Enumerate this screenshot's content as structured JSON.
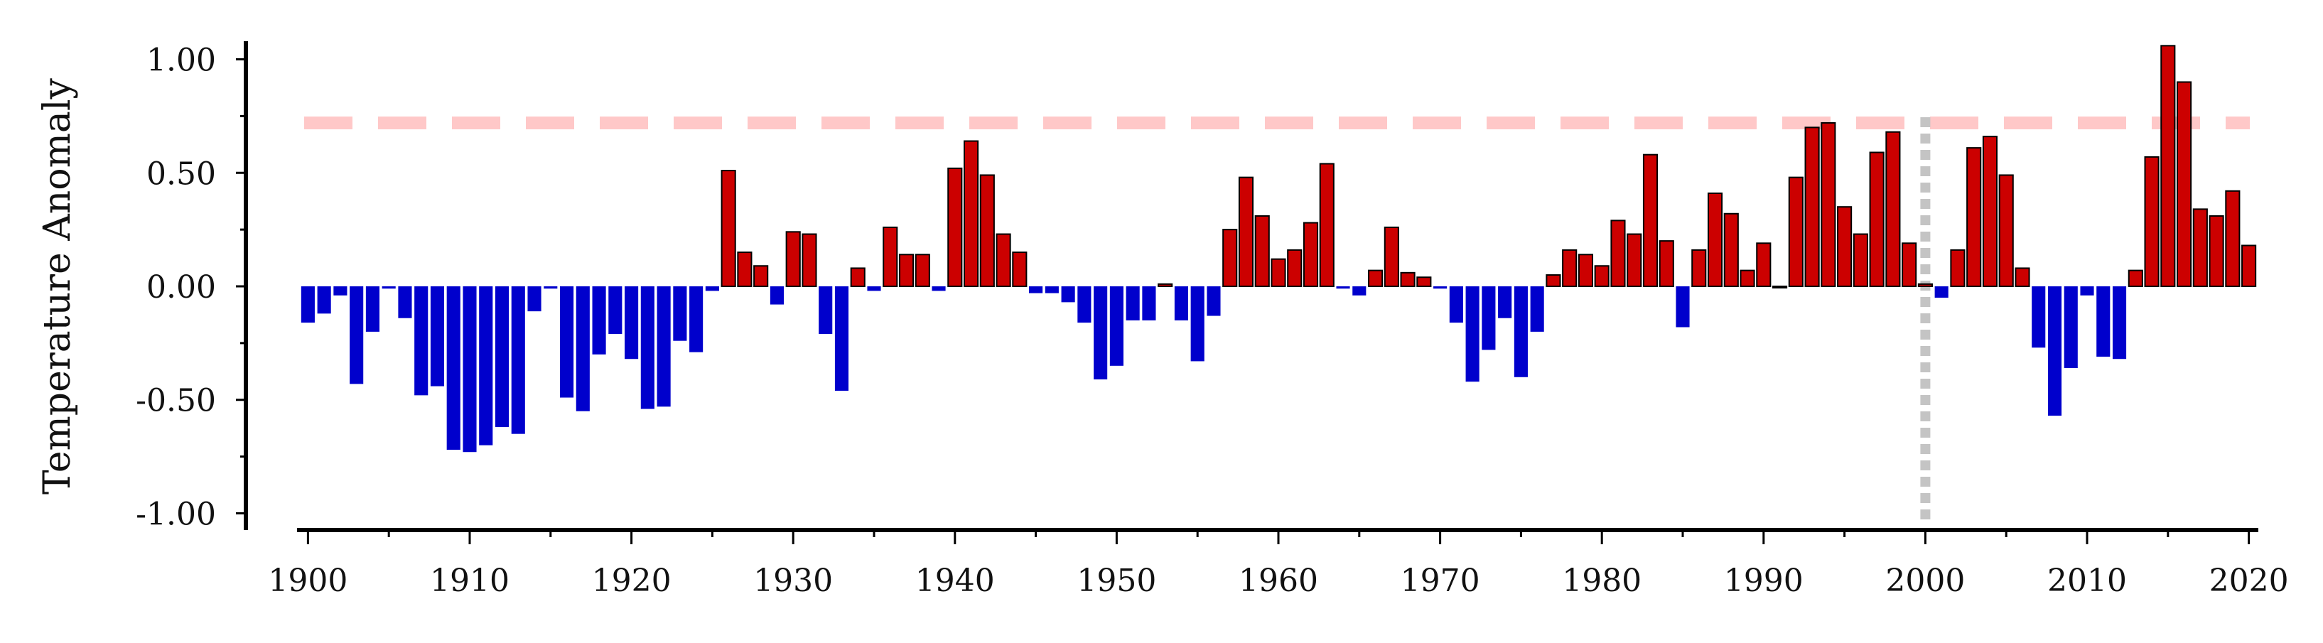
{
  "chart_data": {
    "type": "bar",
    "title": "",
    "xlabel": "",
    "ylabel": "Temperature Anomaly",
    "xlim": [
      1899.5,
      2020.5
    ],
    "ylim": [
      -1.18,
      1.18
    ],
    "x_ticks": [
      1900,
      1910,
      1920,
      1930,
      1940,
      1950,
      1960,
      1970,
      1980,
      1990,
      2000,
      2010,
      2020
    ],
    "x_tick_labels": [
      "1900",
      "1910",
      "1920",
      "1930",
      "1940",
      "1950",
      "1960",
      "1970",
      "1980",
      "1990",
      "2000",
      "2010",
      "2020"
    ],
    "y_ticks": [
      1.0,
      0.5,
      0.0,
      -0.5,
      -1.0
    ],
    "y_tick_labels": [
      "1.00",
      "0.50",
      "0.00",
      "-0.50",
      "-1.00"
    ],
    "y_minor_ticks": [
      0.75,
      0.25,
      -0.25,
      -0.75
    ],
    "grid": false,
    "legend": "none",
    "colors": {
      "positive": "#cc0000",
      "negative": "#0000cc",
      "outline": "#000000",
      "reference_line": "#ffc8c8",
      "marker_line": "#c4c4c4"
    },
    "reference_line": {
      "y": 0.72,
      "style": "dashed"
    },
    "vertical_marker": {
      "x": 2000,
      "style": "dotted"
    },
    "years": [
      1900,
      1901,
      1902,
      1903,
      1904,
      1905,
      1906,
      1907,
      1908,
      1909,
      1910,
      1911,
      1912,
      1913,
      1914,
      1915,
      1916,
      1917,
      1918,
      1919,
      1920,
      1921,
      1922,
      1923,
      1924,
      1925,
      1926,
      1927,
      1928,
      1929,
      1930,
      1931,
      1932,
      1933,
      1934,
      1935,
      1936,
      1937,
      1938,
      1939,
      1940,
      1941,
      1942,
      1943,
      1944,
      1945,
      1946,
      1947,
      1948,
      1949,
      1950,
      1951,
      1952,
      1953,
      1954,
      1955,
      1956,
      1957,
      1958,
      1959,
      1960,
      1961,
      1962,
      1963,
      1964,
      1965,
      1966,
      1967,
      1968,
      1969,
      1970,
      1971,
      1972,
      1973,
      1974,
      1975,
      1976,
      1977,
      1978,
      1979,
      1980,
      1981,
      1982,
      1983,
      1984,
      1985,
      1986,
      1987,
      1988,
      1989,
      1990,
      1991,
      1992,
      1993,
      1994,
      1995,
      1996,
      1997,
      1998,
      1999,
      2000,
      2001,
      2002,
      2003,
      2004,
      2005,
      2006,
      2007,
      2008,
      2009,
      2010,
      2011,
      2012,
      2013,
      2014,
      2015,
      2016,
      2017,
      2018,
      2019,
      2020
    ],
    "values": [
      -0.16,
      -0.12,
      -0.04,
      -0.43,
      -0.2,
      -0.01,
      -0.14,
      -0.48,
      -0.44,
      -0.72,
      -0.73,
      -0.7,
      -0.62,
      -0.65,
      -0.11,
      -0.01,
      -0.49,
      -0.55,
      -0.3,
      -0.21,
      -0.32,
      -0.54,
      -0.53,
      -0.24,
      -0.29,
      -0.02,
      0.51,
      0.15,
      0.09,
      -0.08,
      0.24,
      0.23,
      -0.21,
      -0.46,
      0.08,
      -0.02,
      0.26,
      0.14,
      0.14,
      -0.02,
      0.52,
      0.64,
      0.49,
      0.23,
      0.15,
      -0.03,
      -0.03,
      -0.07,
      -0.16,
      -0.41,
      -0.35,
      -0.15,
      -0.15,
      0.01,
      -0.15,
      -0.33,
      -0.13,
      0.25,
      0.48,
      0.31,
      0.12,
      0.16,
      0.28,
      0.54,
      -0.01,
      -0.04,
      0.07,
      0.26,
      0.06,
      0.04,
      -0.01,
      -0.16,
      -0.42,
      -0.28,
      -0.14,
      -0.4,
      -0.2,
      0.05,
      0.16,
      0.14,
      0.09,
      0.29,
      0.23,
      0.58,
      0.2,
      -0.18,
      0.16,
      0.41,
      0.32,
      0.07,
      0.19,
      0.0,
      0.48,
      0.7,
      0.72,
      0.35,
      0.23,
      0.59,
      0.68,
      0.19,
      0.01,
      -0.05,
      0.16,
      0.61,
      0.66,
      0.49,
      0.08,
      -0.27,
      -0.57,
      -0.36,
      -0.04,
      -0.31,
      -0.32,
      0.07,
      0.57,
      1.06,
      0.9,
      0.34,
      0.31,
      0.42,
      0.18
    ]
  }
}
